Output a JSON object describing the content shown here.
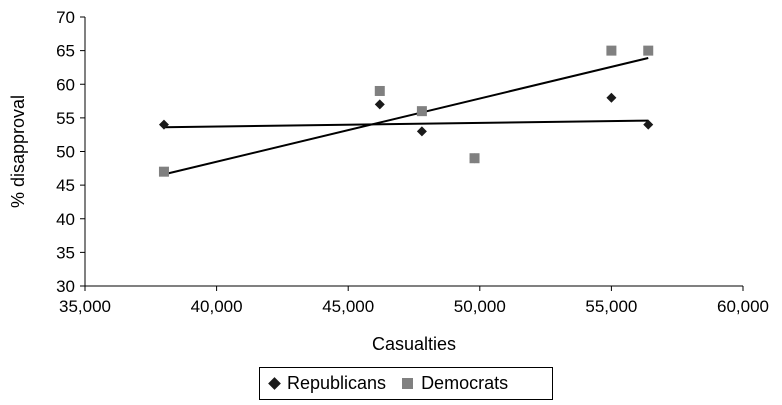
{
  "chart_data": {
    "type": "scatter",
    "xlabel": "Casualties",
    "ylabel": "% disapproval",
    "xlim": [
      35000,
      60000
    ],
    "ylim": [
      30,
      70
    ],
    "x_ticks": [
      35000,
      40000,
      45000,
      50000,
      55000,
      60000
    ],
    "x_tick_labels": [
      "35,000",
      "40,000",
      "45,000",
      "50,000",
      "55,000",
      "60,000"
    ],
    "y_ticks": [
      30,
      35,
      40,
      45,
      50,
      55,
      60,
      65,
      70
    ],
    "y_tick_labels": [
      "30",
      "35",
      "40",
      "45",
      "50",
      "55",
      "60",
      "65",
      "70"
    ],
    "grid": false,
    "legend_position": "bottom",
    "series": [
      {
        "name": "Republicans",
        "marker": "diamond",
        "color": "#1a1a1a",
        "x": [
          38000,
          46200,
          47800,
          49800,
          55000,
          56400
        ],
        "y": [
          54,
          57,
          53,
          49,
          58,
          54
        ],
        "trendline": {
          "x": [
            38000,
            56400
          ],
          "y": [
            53.6,
            54.6
          ]
        }
      },
      {
        "name": "Democrats",
        "marker": "square",
        "color": "#808080",
        "x": [
          38000,
          46200,
          47800,
          49800,
          55000,
          56400
        ],
        "y": [
          47,
          59,
          56,
          49,
          65,
          65
        ],
        "trendline": {
          "x": [
            38000,
            56400
          ],
          "y": [
            46.6,
            63.9
          ]
        }
      }
    ]
  }
}
